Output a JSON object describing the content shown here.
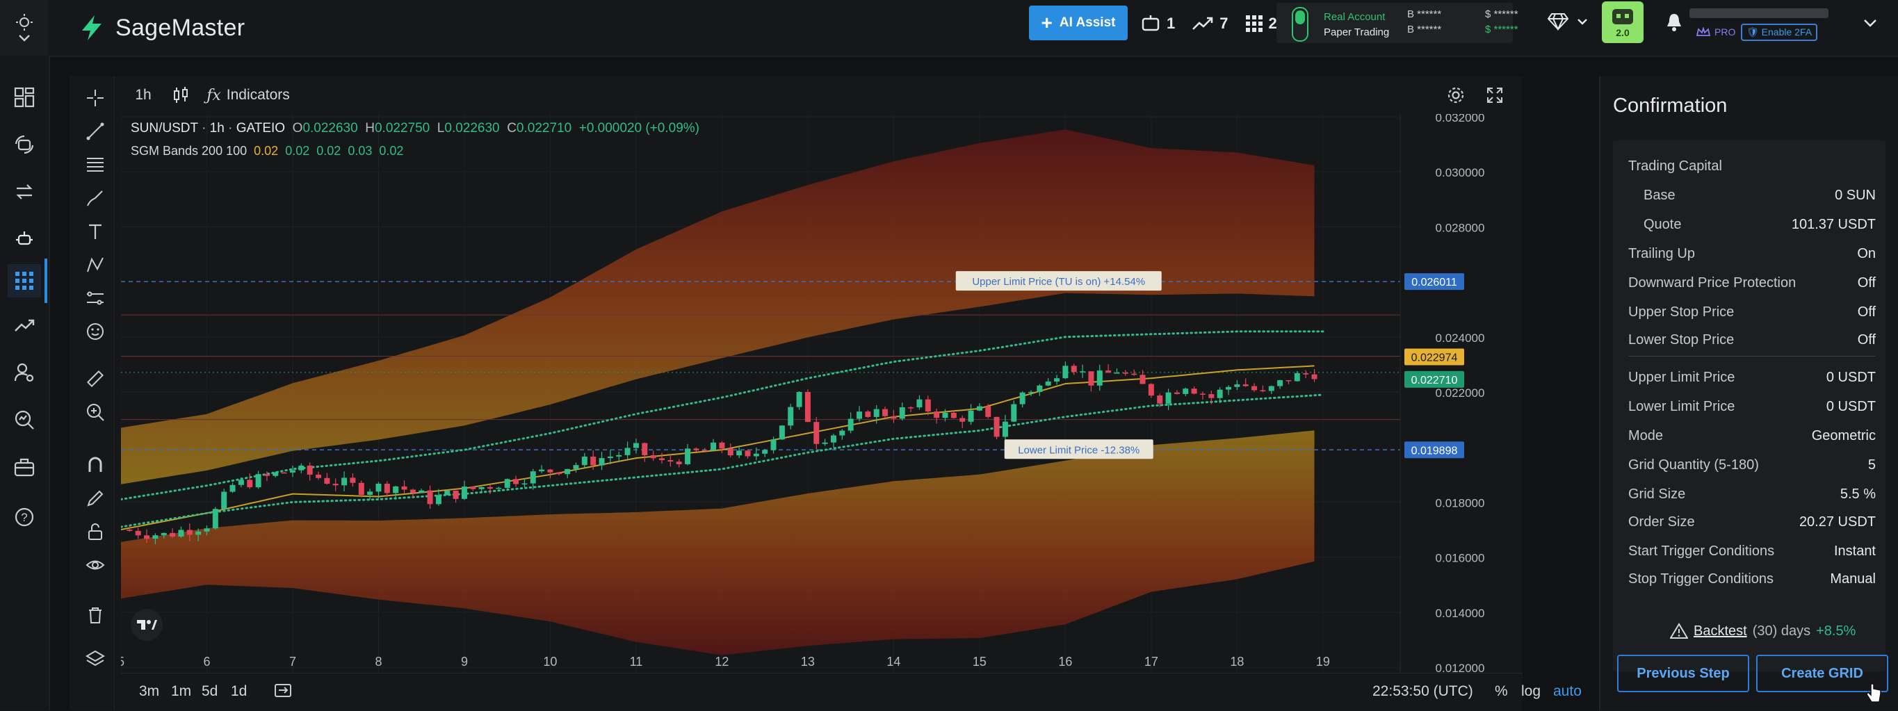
{
  "app": {
    "name": "SageMaster",
    "ai_assist_label": "AI Assist"
  },
  "topbar": {
    "counts": [
      {
        "icon": "bot-icon",
        "value": "1"
      },
      {
        "icon": "trend-icon",
        "value": "7"
      },
      {
        "icon": "grid-icon",
        "value": "2"
      }
    ],
    "account": {
      "real_label": "Real Account",
      "paper_label": "Paper Trading"
    },
    "balances": {
      "b1": "B ******",
      "b2": "B ******",
      "s1": "$ ******",
      "s2": "$ ******"
    },
    "robot_version": "2.0",
    "pro_label": "PRO",
    "enable_2fa_label": "Enable 2FA"
  },
  "chart_toolbar": {
    "interval": "1h",
    "indicators_label": "Indicators"
  },
  "legend": {
    "symbol": "SUN/USDT",
    "interval": "1h",
    "exchange": "GATEIO",
    "o_label": "O",
    "o": "0.022630",
    "h_label": "H",
    "h": "0.022750",
    "l_label": "L",
    "l": "0.022630",
    "c_label": "C",
    "c": "0.022710",
    "change": "+0.000020 (+0.09%)",
    "indicator_name": "SGM Bands 200 100",
    "indicator_values": [
      "0.02",
      "0.02",
      "0.02",
      "0.03",
      "0.02"
    ]
  },
  "chart_data": {
    "type": "line",
    "title": "SUN/USDT · 1h · GATEIO",
    "x_tick_labels": [
      "5",
      "6",
      "7",
      "8",
      "9",
      "10",
      "11",
      "12",
      "13",
      "14",
      "15",
      "16",
      "17",
      "18",
      "19"
    ],
    "y_tick_labels": [
      "0.032000",
      "0.030000",
      "0.028000",
      "0.024000",
      "0.022000",
      "0.018000",
      "0.016000",
      "0.014000",
      "0.012000"
    ],
    "ylim": [
      0.0118,
      0.0321
    ],
    "xlim": [
      5,
      19.9
    ],
    "price_labels": [
      {
        "value": "0.026011",
        "color": "#2f6dc4"
      },
      {
        "value": "0.022974",
        "color": "#e7b231"
      },
      {
        "value": "0.022710",
        "color": "#1f9a6e"
      },
      {
        "value": "0.019898",
        "color": "#2f6dc4"
      }
    ],
    "annotations": {
      "upper": "Upper Limit Price  (TU is on) +14.54%",
      "lower": "Lower Limit Price  -12.38%"
    },
    "upper_limit": 0.026011,
    "lower_limit": 0.019898,
    "current_price": 0.02271,
    "series": [
      {
        "name": "Close",
        "values": [
          [
            5,
            0.017
          ],
          [
            5.5,
            0.0168
          ],
          [
            6,
            0.0172
          ],
          [
            6.3,
            0.0186
          ],
          [
            6.7,
            0.0189
          ],
          [
            7,
            0.0192
          ],
          [
            7.4,
            0.0188
          ],
          [
            7.8,
            0.0185
          ],
          [
            8.2,
            0.0186
          ],
          [
            8.6,
            0.0181
          ],
          [
            9,
            0.0184
          ],
          [
            9.4,
            0.0187
          ],
          [
            9.8,
            0.019
          ],
          [
            10.2,
            0.0193
          ],
          [
            10.6,
            0.0196
          ],
          [
            11,
            0.0199
          ],
          [
            11.3,
            0.0194
          ],
          [
            11.7,
            0.0198
          ],
          [
            12,
            0.02
          ],
          [
            12.3,
            0.0195
          ],
          [
            12.6,
            0.0204
          ],
          [
            12.9,
            0.0218
          ],
          [
            13.1,
            0.0203
          ],
          [
            13.4,
            0.0206
          ],
          [
            13.7,
            0.0213
          ],
          [
            14,
            0.0212
          ],
          [
            14.3,
            0.0215
          ],
          [
            14.7,
            0.021
          ],
          [
            15,
            0.0213
          ],
          [
            15.2,
            0.0205
          ],
          [
            15.5,
            0.022
          ],
          [
            15.8,
            0.0223
          ],
          [
            16,
            0.0232
          ],
          [
            16.3,
            0.0224
          ],
          [
            16.6,
            0.0228
          ],
          [
            16.9,
            0.0222
          ],
          [
            17.1,
            0.0218
          ],
          [
            17.4,
            0.0223
          ],
          [
            17.7,
            0.0218
          ],
          [
            18,
            0.0224
          ],
          [
            18.3,
            0.0219
          ],
          [
            18.6,
            0.0225
          ],
          [
            18.9,
            0.02271
          ]
        ]
      },
      {
        "name": "Middle",
        "values": [
          [
            5,
            0.017
          ],
          [
            6,
            0.0176
          ],
          [
            7,
            0.0183
          ],
          [
            8,
            0.0182
          ],
          [
            9,
            0.0185
          ],
          [
            10,
            0.019
          ],
          [
            11,
            0.0196
          ],
          [
            12,
            0.0199
          ],
          [
            13,
            0.0205
          ],
          [
            14,
            0.0211
          ],
          [
            15,
            0.0214
          ],
          [
            16,
            0.0223
          ],
          [
            17,
            0.0225
          ],
          [
            18,
            0.0228
          ],
          [
            18.9,
            0.02295
          ]
        ]
      },
      {
        "name": "Inner upper",
        "values": [
          [
            5,
            0.0181
          ],
          [
            6,
            0.0186
          ],
          [
            7,
            0.0192
          ],
          [
            8,
            0.0195
          ],
          [
            9,
            0.0199
          ],
          [
            10,
            0.0205
          ],
          [
            11,
            0.0212
          ],
          [
            12,
            0.0218
          ],
          [
            13,
            0.0225
          ],
          [
            14,
            0.0231
          ],
          [
            15,
            0.0235
          ],
          [
            16,
            0.024
          ],
          [
            17,
            0.0241
          ],
          [
            18,
            0.0242
          ],
          [
            19,
            0.0242
          ]
        ]
      },
      {
        "name": "Inner lower",
        "values": [
          [
            5,
            0.0171
          ],
          [
            6,
            0.0176
          ],
          [
            7,
            0.018
          ],
          [
            8,
            0.0181
          ],
          [
            9,
            0.0183
          ],
          [
            10,
            0.0186
          ],
          [
            11,
            0.0189
          ],
          [
            12,
            0.0192
          ],
          [
            13,
            0.0198
          ],
          [
            14,
            0.0203
          ],
          [
            15,
            0.0206
          ],
          [
            16,
            0.0211
          ],
          [
            17,
            0.0215
          ],
          [
            18,
            0.0217
          ],
          [
            19,
            0.0219
          ]
        ]
      }
    ]
  },
  "bottom_bar": {
    "ranges": [
      "3m",
      "1m",
      "5d",
      "1d"
    ],
    "time": "22:53:50 (UTC)",
    "pct": "%",
    "log": "log",
    "auto": "auto"
  },
  "panel": {
    "title": "Confirmation",
    "rows": [
      {
        "label": "Trading Capital",
        "value": ""
      },
      {
        "label": "Base",
        "value": "0 SUN"
      },
      {
        "label": "Quote",
        "value": "101.37 USDT"
      },
      {
        "label": "Trailing Up",
        "value": "On"
      },
      {
        "label": "Downward Price Protection",
        "value": "Off"
      },
      {
        "label": "Upper Stop Price",
        "value": "Off"
      },
      {
        "label": "Lower Stop Price",
        "value": "Off"
      },
      {
        "label": "Upper Limit Price",
        "value": "0 USDT"
      },
      {
        "label": "Lower Limit Price",
        "value": "0 USDT"
      },
      {
        "label": "Mode",
        "value": "Geometric"
      },
      {
        "label": "Grid Quantity (5-180)",
        "value": "5"
      },
      {
        "label": "Grid Size",
        "value": "5.5 %"
      },
      {
        "label": "Order Size",
        "value": "20.27 USDT"
      },
      {
        "label": "Start Trigger Conditions",
        "value": "Instant"
      },
      {
        "label": "Stop Trigger Conditions",
        "value": "Manual"
      }
    ],
    "backtest_link": "Backtest",
    "backtest_mid": "(30) days",
    "backtest_pct": "+8.5%",
    "prev_label": "Previous Step",
    "create_label": "Create GRID"
  },
  "colors": {
    "accent": "#2b8de0",
    "up": "#2fbd8a",
    "down": "#e0455a",
    "band_gold": "#e7b231"
  }
}
